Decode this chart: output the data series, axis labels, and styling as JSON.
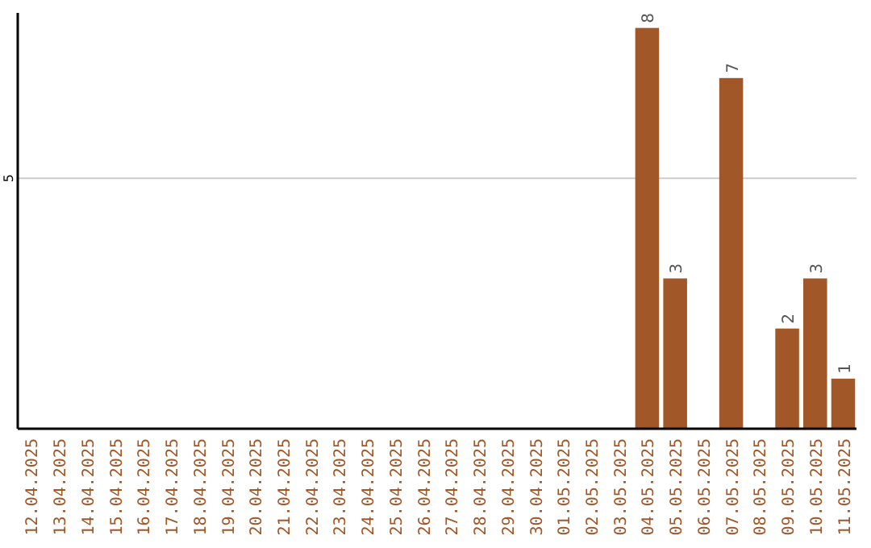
{
  "chart_data": {
    "type": "bar",
    "categories": [
      "12.04.2025",
      "13.04.2025",
      "14.04.2025",
      "15.04.2025",
      "16.04.2025",
      "17.04.2025",
      "18.04.2025",
      "19.04.2025",
      "20.04.2025",
      "21.04.2025",
      "22.04.2025",
      "23.04.2025",
      "24.04.2025",
      "25.04.2025",
      "26.04.2025",
      "27.04.2025",
      "28.04.2025",
      "29.04.2025",
      "30.04.2025",
      "01.05.2025",
      "02.05.2025",
      "03.05.2025",
      "04.05.2025",
      "05.05.2025",
      "06.05.2025",
      "07.05.2025",
      "08.05.2025",
      "09.05.2025",
      "10.05.2025",
      "11.05.2025"
    ],
    "values": [
      null,
      null,
      null,
      null,
      null,
      null,
      null,
      null,
      null,
      null,
      null,
      null,
      null,
      null,
      null,
      null,
      null,
      null,
      null,
      null,
      null,
      null,
      8,
      3,
      null,
      7,
      null,
      2,
      3,
      1
    ],
    "color": "#a25728",
    "ylim": [
      0,
      8.3
    ],
    "yticks": [
      5
    ],
    "grid": "y",
    "data_labels": true
  }
}
